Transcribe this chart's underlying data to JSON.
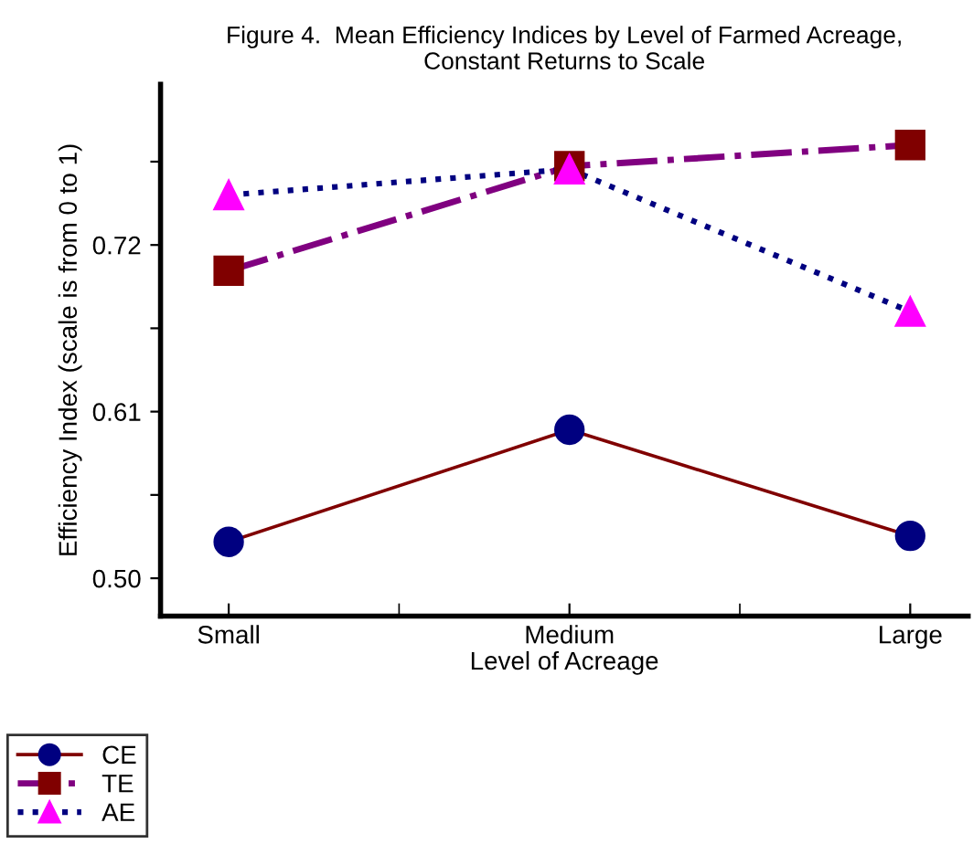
{
  "chart_data": {
    "type": "line",
    "title": "Figure 4.  Mean Efficiency Indices by Level of Farmed Acreage,\nConstant Returns to Scale",
    "xlabel": "Level of Acreage",
    "ylabel": "Efficiency Index (scale is from 0 to 1)",
    "categories": [
      "Small",
      "Medium",
      "Large"
    ],
    "ylim": [
      0.475,
      0.826
    ],
    "yticks": [
      {
        "value": 0.5,
        "label": "0.50"
      },
      {
        "value": 0.555,
        "label": null
      },
      0.61,
      {
        "value": 0.665,
        "label": null
      },
      0.72,
      {
        "value": 0.775,
        "label": null
      }
    ],
    "grid": false,
    "legend": "bottom left",
    "series": [
      {
        "name": "CE",
        "color": "#800000",
        "colors": [
          "#000080",
          "#000080",
          "#000080"
        ],
        "marker": "circle",
        "line_style": "solid",
        "values": [
          0.524,
          0.598,
          0.528
        ]
      },
      {
        "name": "TE",
        "color": "#800080",
        "colors": [
          "#800000",
          "#800000",
          "#800000"
        ],
        "marker": "square",
        "line_style": "dashdot",
        "values": [
          0.703,
          0.772,
          0.786
        ]
      },
      {
        "name": "AE",
        "color": "#000080",
        "colors": [
          "#ff00ff",
          "#ff00ff",
          "#ff00ff"
        ],
        "marker": "triangle",
        "line_style": "dotted",
        "values": [
          0.753,
          0.77,
          0.676
        ]
      }
    ]
  }
}
